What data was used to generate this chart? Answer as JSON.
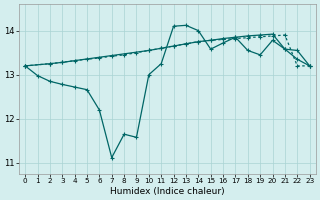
{
  "xlabel": "Humidex (Indice chaleur)",
  "bg_color": "#d4eeee",
  "line_color": "#006666",
  "grid_color": "#aad4d4",
  "xlim": [
    -0.5,
    23.5
  ],
  "ylim": [
    10.75,
    14.6
  ],
  "xticks": [
    0,
    1,
    2,
    3,
    4,
    5,
    6,
    7,
    8,
    9,
    10,
    11,
    12,
    13,
    14,
    15,
    16,
    17,
    18,
    19,
    20,
    21,
    22,
    23
  ],
  "yticks": [
    11,
    12,
    13,
    14
  ],
  "curve1_x": [
    0,
    2,
    3,
    10,
    11,
    12,
    13,
    14,
    15,
    16,
    17,
    18,
    19,
    20,
    21,
    22,
    23
  ],
  "curve1_y": [
    13.2,
    13.25,
    13.28,
    13.55,
    13.6,
    13.65,
    13.7,
    13.75,
    13.78,
    13.82,
    13.85,
    13.88,
    13.9,
    13.92,
    13.58,
    13.55,
    13.2
  ],
  "curve2_x": [
    0,
    1,
    2,
    3,
    4,
    5,
    6,
    7,
    8,
    9,
    10,
    11,
    12,
    13,
    14,
    15,
    16,
    17,
    18,
    19,
    20,
    21,
    22,
    23
  ],
  "curve2_y": [
    13.2,
    12.98,
    12.85,
    12.78,
    12.72,
    12.66,
    12.2,
    11.12,
    11.65,
    11.58,
    13.0,
    13.25,
    14.1,
    14.12,
    14.0,
    13.58,
    13.72,
    13.85,
    13.55,
    13.45,
    13.78,
    13.58,
    13.35,
    13.2
  ],
  "curve3_x": [
    0,
    2,
    3,
    4,
    5,
    6,
    7,
    8,
    9,
    10,
    11,
    12,
    13,
    14,
    15,
    16,
    17,
    18,
    19,
    20,
    21,
    22,
    23
  ],
  "curve3_y": [
    13.2,
    13.25,
    13.28,
    13.32,
    13.35,
    13.38,
    13.42,
    13.45,
    13.5,
    13.55,
    13.6,
    13.65,
    13.7,
    13.75,
    13.78,
    13.8,
    13.82,
    13.84,
    13.86,
    13.88,
    13.9,
    13.2,
    13.2
  ]
}
